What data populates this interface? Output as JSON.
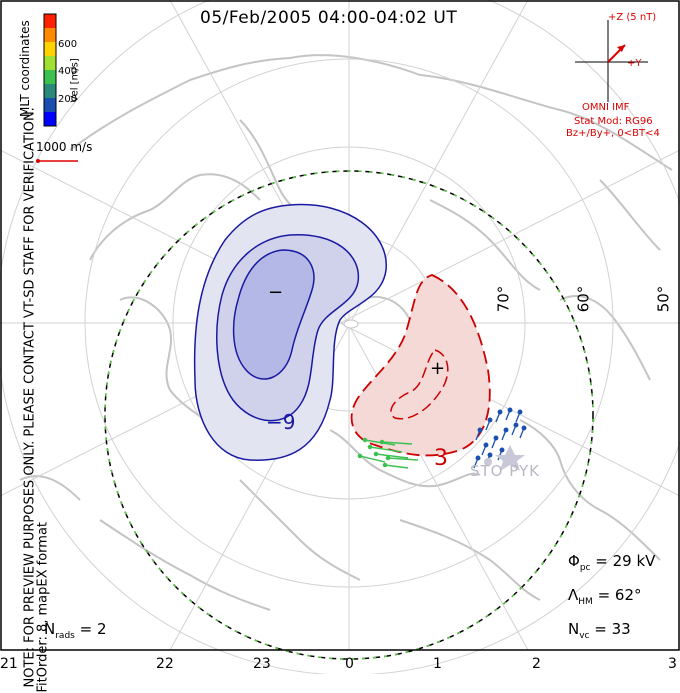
{
  "header": {
    "title": "05/Feb/2005 04:00-04:02 UT"
  },
  "side_note": {
    "line1": "NOTE: FOR PREVIEW PURPOSES ONLY. PLEASE CONTACT VT-SD STAFF FOR VERIFICATION.",
    "line2": "FitOrder: 8, mapEX format"
  },
  "colorbar": {
    "title": "MLT coordinates",
    "unit_label": "Vel [m/s]",
    "ticks": [
      "600",
      "400",
      "200"
    ],
    "colors": [
      "#ff2000",
      "#ff8a00",
      "#ffd200",
      "#a0e030",
      "#3cc050",
      "#2a8a7a",
      "#1a4fb0",
      "#0000ff"
    ]
  },
  "vector_scale": {
    "label": "1000 m/s"
  },
  "imf": {
    "z_label": "+Z (5 nT)",
    "y_label": "+Y",
    "source": "OMNI IMF",
    "stat_mod": "Stat Mod: RG96",
    "condition": "Bz+/By+, 0<BT<4"
  },
  "stats": {
    "phi_pc": "29 kV",
    "lambda_hm": "62°",
    "n_vc": "33",
    "n_rads": "2"
  },
  "mlt_labels": [
    "21",
    "22",
    "23",
    "0",
    "1",
    "2",
    "3"
  ],
  "lat_labels": [
    "70°",
    "60°",
    "50°"
  ],
  "contour_labels": {
    "neg": "−9",
    "neg_sign": "−",
    "pos": "3",
    "pos_sign": "+"
  },
  "radars": {
    "label": "STO PYK"
  },
  "colors": {
    "negative_cell": "#1a1aa0",
    "positive_cell": "#cc0000",
    "coast": "#c4c4c4",
    "grid": "#d2d2d2",
    "hmb": "#58c840",
    "imf": "#dd0000"
  }
}
